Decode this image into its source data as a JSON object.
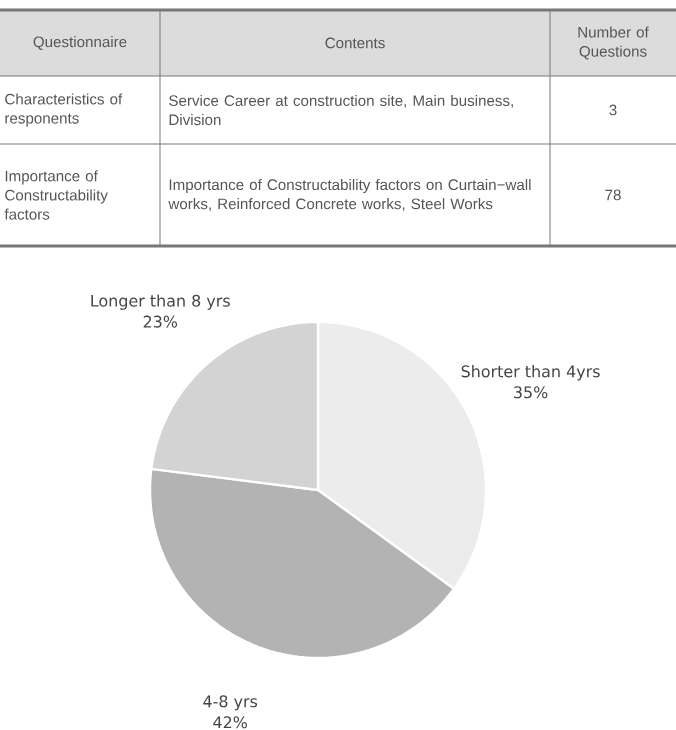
{
  "chart_data": [
    {
      "type": "other",
      "categories": [
        "Characteristics of responents",
        "Importance of Constructability factors"
      ],
      "values": [
        3,
        78
      ],
      "data_labels": true,
      "annotations": [
        "Questionnaire",
        "Contents",
        "Number of Questions",
        "Service Career at construction site, Main business, Division",
        "Importance of Constructability factors on Curtain−wall works, Reinforced Concrete works, Steel Works"
      ]
    },
    {
      "type": "pie",
      "categories": [
        "Shorter than 4yrs",
        "4-8 yrs",
        "Longer than 8 yrs"
      ],
      "values": [
        35,
        42,
        23
      ],
      "colors": [
        "#ececec",
        "#b3b3b3",
        "#d3d3d3"
      ],
      "value_labels": [
        "35%",
        "42%",
        "23%"
      ]
    }
  ]
}
